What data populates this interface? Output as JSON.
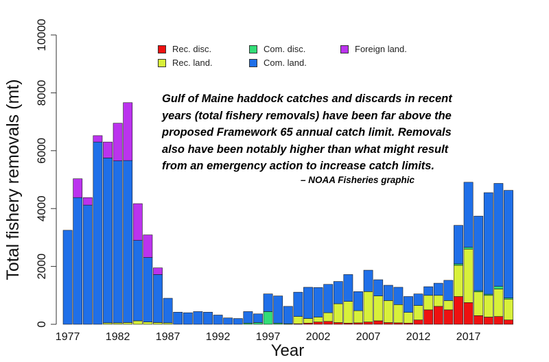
{
  "chart_data": {
    "type": "bar",
    "stacked": true,
    "xlabel": "Year",
    "ylabel": "Total fishery removals (mt)",
    "ylim": [
      0,
      10000
    ],
    "yticks": [
      0,
      2000,
      4000,
      6000,
      8000,
      10000
    ],
    "ytick_labels": [
      "0",
      "2000",
      "4000",
      "6000",
      "8000",
      "10000"
    ],
    "xtick_labels": [
      "1977",
      "1982",
      "1987",
      "1992",
      "1997",
      "2002",
      "2007",
      "2012",
      "2017"
    ],
    "grid": false,
    "legend_position": "top",
    "categories": [
      "1977",
      "1978",
      "1979",
      "1980",
      "1981",
      "1982",
      "1983",
      "1984",
      "1985",
      "1986",
      "1987",
      "1988",
      "1989",
      "1990",
      "1991",
      "1992",
      "1993",
      "1994",
      "1995",
      "1996",
      "1997",
      "1998",
      "1999",
      "2000",
      "2001",
      "2002",
      "2003",
      "2004",
      "2005",
      "2006",
      "2007",
      "2008",
      "2009",
      "2010",
      "2011",
      "2012",
      "2013",
      "2014",
      "2015",
      "2016",
      "2017",
      "2018",
      "2019",
      "2020",
      "2021"
    ],
    "series": [
      {
        "name": "Rec. disc.",
        "color": "#ee1111",
        "values": [
          0,
          0,
          0,
          0,
          0,
          0,
          0,
          0,
          0,
          0,
          0,
          0,
          0,
          0,
          0,
          0,
          0,
          0,
          0,
          0,
          0,
          0,
          0,
          20,
          40,
          80,
          100,
          60,
          40,
          50,
          80,
          120,
          60,
          50,
          40,
          150,
          500,
          620,
          500,
          960,
          750,
          300,
          250,
          270,
          150
        ]
      },
      {
        "name": "Rec. land.",
        "color": "#d8f03a",
        "values": [
          0,
          0,
          0,
          0,
          50,
          50,
          60,
          120,
          80,
          60,
          50,
          0,
          0,
          0,
          0,
          0,
          0,
          0,
          0,
          0,
          0,
          0,
          0,
          250,
          160,
          170,
          300,
          650,
          750,
          420,
          1050,
          860,
          760,
          630,
          370,
          500,
          500,
          380,
          320,
          1080,
          1850,
          820,
          750,
          950,
          720
        ]
      },
      {
        "name": "Com. disc.",
        "color": "#33dd77",
        "values": [
          0,
          0,
          0,
          0,
          0,
          0,
          0,
          0,
          0,
          0,
          0,
          0,
          0,
          0,
          0,
          0,
          0,
          0,
          40,
          60,
          440,
          40,
          20,
          0,
          0,
          0,
          0,
          0,
          0,
          0,
          0,
          0,
          0,
          0,
          0,
          0,
          0,
          0,
          0,
          50,
          60,
          40,
          40,
          90,
          40
        ]
      },
      {
        "name": "Com. land.",
        "color": "#1f6fe8",
        "values": [
          3250,
          4380,
          4120,
          6300,
          5700,
          5600,
          5600,
          2780,
          2230,
          1660,
          850,
          420,
          400,
          440,
          420,
          320,
          220,
          200,
          400,
          300,
          610,
          940,
          600,
          840,
          1080,
          1020,
          980,
          770,
          930,
          660,
          740,
          560,
          530,
          600,
          550,
          400,
          300,
          420,
          700,
          1330,
          2250,
          2580,
          3510,
          3560,
          3720
        ]
      },
      {
        "name": "Foreign land.",
        "color": "#bb33ee",
        "values": [
          0,
          650,
          260,
          220,
          550,
          1300,
          2000,
          1270,
          780,
          230,
          0,
          0,
          0,
          0,
          0,
          0,
          0,
          0,
          0,
          0,
          0,
          0,
          0,
          0,
          0,
          0,
          0,
          0,
          0,
          0,
          0,
          0,
          0,
          0,
          0,
          0,
          0,
          0,
          0,
          0,
          0,
          0,
          0,
          0,
          0
        ]
      }
    ]
  },
  "annotation": {
    "lines": [
      "Gulf of Maine haddock catches and discards in recent",
      "years (total fishery removals) have been far above the",
      "proposed Framework 65 annual catch limit.  Removals",
      "also have been notably higher than what might result",
      "from an emergency action to increase catch limits."
    ],
    "credit": "– NOAA Fisheries graphic"
  }
}
